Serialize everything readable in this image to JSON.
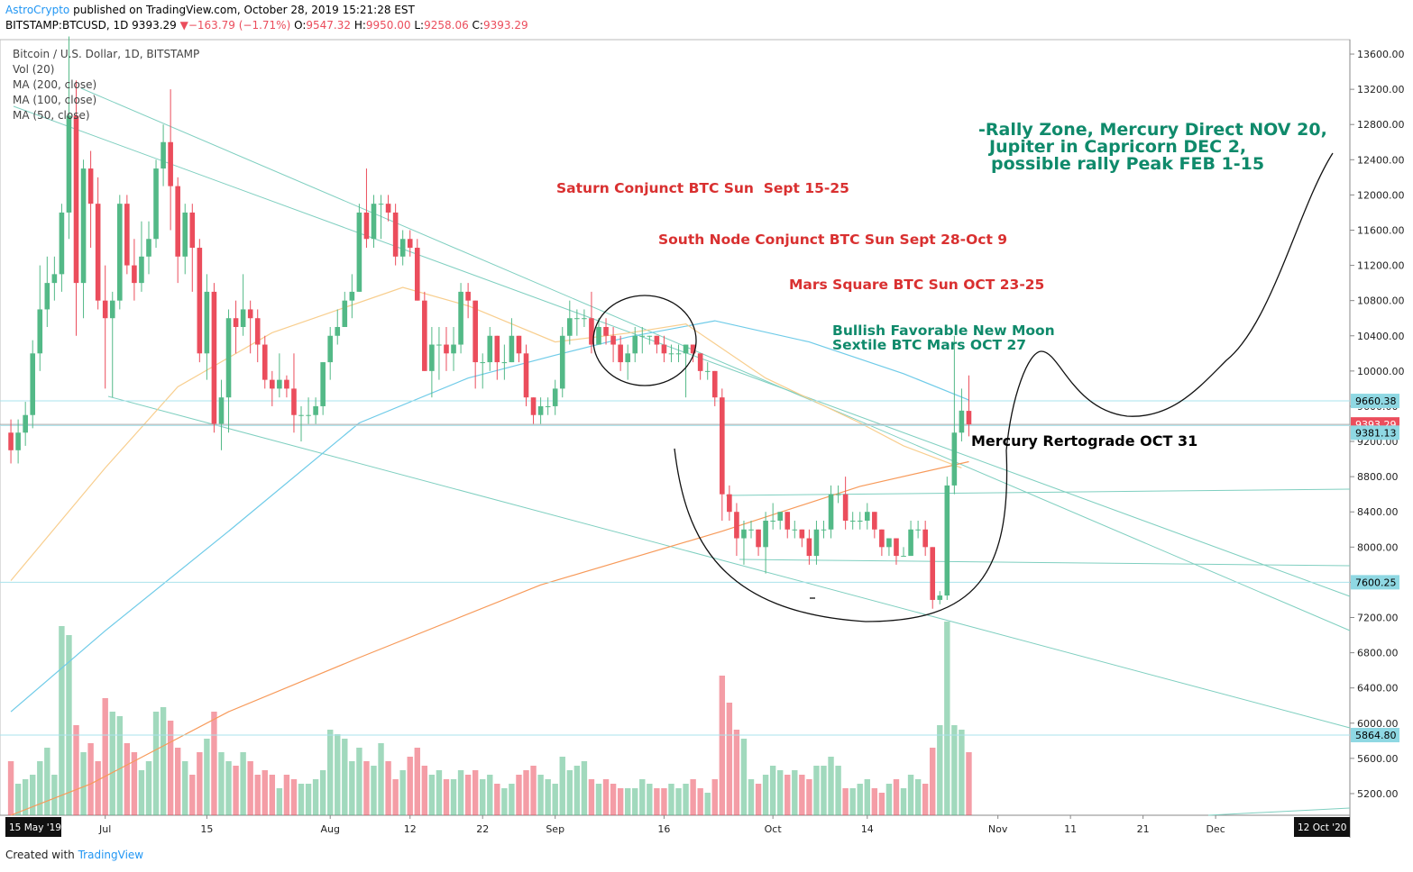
{
  "header": {
    "author": "AstroCrypto",
    "published": "published on TradingView.com, October 28, 2019 15:21:28 EST",
    "symbol": "BITSTAMP:BTCUSD, 1D",
    "last": "9393.29",
    "change": "−163.79 (−1.71%)",
    "quote": [
      {
        "label": "O:",
        "value": "9547.32"
      },
      {
        "label": "H:",
        "value": "9950.00"
      },
      {
        "label": "L:",
        "value": "9258.06"
      },
      {
        "label": "C:",
        "value": "9393.29"
      }
    ]
  },
  "footer": {
    "created": "Created with",
    "brand": "TradingView"
  },
  "chart_data": {
    "type": "candlestick",
    "legend": [
      "Bitcoin / U.S. Dollar, 1D, BITSTAMP",
      "Vol (20)",
      "MA (200, close)",
      "MA (100, close)",
      "MA (50, close)"
    ],
    "up_color": "#53b987",
    "down_color": "#eb4d5c",
    "xlim": [
      -1.5,
      184.5
    ],
    "xticks": [
      {
        "value": 13,
        "label": "Jul"
      },
      {
        "value": 27,
        "label": "15"
      },
      {
        "value": 44,
        "label": "Aug"
      },
      {
        "value": 55,
        "label": "12"
      },
      {
        "value": 65,
        "label": "22"
      },
      {
        "value": 75,
        "label": "Sep"
      },
      {
        "value": 90,
        "label": "16"
      },
      {
        "value": 105,
        "label": "Oct"
      },
      {
        "value": 118,
        "label": "14"
      },
      {
        "value": 136,
        "label": "Nov"
      },
      {
        "value": 146,
        "label": "11"
      },
      {
        "value": 156,
        "label": "21"
      },
      {
        "value": 166,
        "label": "Dec"
      }
    ],
    "x_range_labels": [
      "15 May '19",
      "12 Oct '20"
    ],
    "ylim": [
      4954,
      13764
    ],
    "yticks": [
      {
        "value": 5200,
        "label": "5200.00"
      },
      {
        "value": 5600,
        "label": "5600.00"
      },
      {
        "value": 6000,
        "label": "6000.00"
      },
      {
        "value": 6400,
        "label": "6400.00"
      },
      {
        "value": 6800,
        "label": "6800.00"
      },
      {
        "value": 7200,
        "label": "7200.00"
      },
      {
        "value": 7600,
        "label": "7600.00"
      },
      {
        "value": 8000,
        "label": "8000.00"
      },
      {
        "value": 8400,
        "label": "8400.00"
      },
      {
        "value": 8800,
        "label": "8800.00"
      },
      {
        "value": 9200,
        "label": "9200.00"
      },
      {
        "value": 9600,
        "label": "9600.00"
      },
      {
        "value": 10000,
        "label": "10000.00"
      },
      {
        "value": 10400,
        "label": "10400.00"
      },
      {
        "value": 10800,
        "label": "10800.00"
      },
      {
        "value": 11200,
        "label": "11200.00"
      },
      {
        "value": 11600,
        "label": "11600.00"
      },
      {
        "value": 12000,
        "label": "12000.00"
      },
      {
        "value": 12400,
        "label": "12400.00"
      },
      {
        "value": 12800,
        "label": "12800.00"
      },
      {
        "value": 13200,
        "label": "13200.00"
      },
      {
        "value": 13600,
        "label": "13600.00"
      }
    ],
    "ohlc": [
      [
        9300,
        9450,
        8950,
        9100
      ],
      [
        9100,
        9450,
        8950,
        9300
      ],
      [
        9300,
        9650,
        9150,
        9500
      ],
      [
        9500,
        10350,
        9350,
        10200
      ],
      [
        10200,
        11200,
        10000,
        10700
      ],
      [
        10700,
        11300,
        10500,
        11000
      ],
      [
        11000,
        11300,
        10800,
        11100
      ],
      [
        11100,
        11900,
        10900,
        11800
      ],
      [
        11800,
        13800,
        11500,
        12900
      ],
      [
        12900,
        13300,
        10400,
        11000
      ],
      [
        11000,
        12400,
        10600,
        12300
      ],
      [
        12300,
        12500,
        11400,
        11900
      ],
      [
        11900,
        12200,
        10700,
        10800
      ],
      [
        10800,
        11200,
        9800,
        10600
      ],
      [
        10600,
        10900,
        9700,
        10800
      ],
      [
        10800,
        12000,
        10700,
        11900
      ],
      [
        11900,
        12000,
        11100,
        11200
      ],
      [
        11200,
        11500,
        10800,
        11000
      ],
      [
        11000,
        11700,
        10900,
        11300
      ],
      [
        11300,
        11700,
        11100,
        11500
      ],
      [
        11500,
        12400,
        11400,
        12300
      ],
      [
        12300,
        12800,
        12100,
        12600
      ],
      [
        12600,
        13200,
        11600,
        12100
      ],
      [
        12100,
        12200,
        11000,
        11300
      ],
      [
        11300,
        11900,
        11100,
        11800
      ],
      [
        11800,
        11900,
        10900,
        11400
      ],
      [
        11400,
        11500,
        10100,
        10200
      ],
      [
        10200,
        11100,
        9900,
        10900
      ],
      [
        10900,
        11000,
        9300,
        9400
      ],
      [
        9400,
        9900,
        9100,
        9700
      ],
      [
        9700,
        10700,
        9300,
        10600
      ],
      [
        10600,
        10800,
        10200,
        10500
      ],
      [
        10500,
        11100,
        10400,
        10700
      ],
      [
        10700,
        10800,
        10200,
        10600
      ],
      [
        10600,
        10700,
        10100,
        10300
      ],
      [
        10300,
        10400,
        9800,
        9900
      ],
      [
        9900,
        10000,
        9600,
        9800
      ],
      [
        9800,
        10200,
        9700,
        9900
      ],
      [
        9900,
        9950,
        9700,
        9800
      ],
      [
        9800,
        10200,
        9300,
        9500
      ],
      [
        9500,
        9600,
        9200,
        9500
      ],
      [
        9500,
        9700,
        9400,
        9500
      ],
      [
        9500,
        9700,
        9400,
        9600
      ],
      [
        9600,
        10100,
        9500,
        10100
      ],
      [
        10100,
        10500,
        9900,
        10400
      ],
      [
        10400,
        10700,
        10300,
        10500
      ],
      [
        10500,
        10900,
        10500,
        10800
      ],
      [
        10800,
        11100,
        10600,
        10900
      ],
      [
        10900,
        11900,
        10900,
        11800
      ],
      [
        11800,
        12300,
        11400,
        11500
      ],
      [
        11500,
        12000,
        11400,
        11900
      ],
      [
        11900,
        12000,
        11500,
        11900
      ],
      [
        11900,
        12000,
        11700,
        11800
      ],
      [
        11800,
        11900,
        11200,
        11300
      ],
      [
        11300,
        11600,
        11200,
        11500
      ],
      [
        11500,
        11600,
        11300,
        11400
      ],
      [
        11400,
        11500,
        10800,
        10800
      ],
      [
        10800,
        10900,
        10000,
        10000
      ],
      [
        10000,
        10500,
        9700,
        10300
      ],
      [
        10300,
        10500,
        9900,
        10300
      ],
      [
        10300,
        10500,
        10000,
        10200
      ],
      [
        10200,
        10500,
        10000,
        10300
      ],
      [
        10300,
        11000,
        10200,
        10900
      ],
      [
        10900,
        11000,
        10600,
        10800
      ],
      [
        10800,
        10800,
        9800,
        10100
      ],
      [
        10100,
        10200,
        9800,
        10100
      ],
      [
        10100,
        10500,
        10000,
        10400
      ],
      [
        10400,
        10400,
        9900,
        10100
      ],
      [
        10100,
        10300,
        9900,
        10100
      ],
      [
        10100,
        10600,
        10100,
        10400
      ],
      [
        10400,
        10400,
        10100,
        10200
      ],
      [
        10200,
        10300,
        9600,
        9700
      ],
      [
        9700,
        9700,
        9400,
        9500
      ],
      [
        9500,
        9700,
        9400,
        9600
      ],
      [
        9600,
        9700,
        9500,
        9600
      ],
      [
        9600,
        9900,
        9500,
        9800
      ],
      [
        9800,
        10500,
        9700,
        10400
      ],
      [
        10400,
        10800,
        10300,
        10600
      ],
      [
        10600,
        10700,
        10400,
        10600
      ],
      [
        10600,
        10700,
        10500,
        10600
      ],
      [
        10600,
        10900,
        10200,
        10300
      ],
      [
        10300,
        10600,
        10300,
        10500
      ],
      [
        10500,
        10600,
        10300,
        10400
      ],
      [
        10400,
        10500,
        10100,
        10300
      ],
      [
        10300,
        10400,
        10000,
        10100
      ],
      [
        10100,
        10300,
        9900,
        10200
      ],
      [
        10200,
        10500,
        10100,
        10400
      ],
      [
        10400,
        10500,
        10200,
        10400
      ],
      [
        10400,
        10400,
        10300,
        10400
      ],
      [
        10400,
        10400,
        10200,
        10300
      ],
      [
        10300,
        10400,
        10100,
        10200
      ],
      [
        10200,
        10300,
        10100,
        10200
      ],
      [
        10200,
        10300,
        10100,
        10200
      ],
      [
        10200,
        10300,
        9700,
        10300
      ],
      [
        10300,
        10300,
        10100,
        10200
      ],
      [
        10200,
        10200,
        9900,
        10000
      ],
      [
        10000,
        10100,
        9900,
        10000
      ],
      [
        10000,
        10000,
        9600,
        9700
      ],
      [
        9700,
        9800,
        8300,
        8600
      ],
      [
        8600,
        8700,
        8300,
        8400
      ],
      [
        8400,
        8500,
        7900,
        8100
      ],
      [
        8100,
        8300,
        7800,
        8200
      ],
      [
        8200,
        8300,
        8100,
        8200
      ],
      [
        8200,
        8200,
        7900,
        8000
      ],
      [
        8000,
        8400,
        7700,
        8300
      ],
      [
        8300,
        8500,
        8200,
        8300
      ],
      [
        8300,
        8400,
        8200,
        8400
      ],
      [
        8400,
        8400,
        8100,
        8200
      ],
      [
        8200,
        8300,
        8100,
        8200
      ],
      [
        8200,
        8200,
        8000,
        8100
      ],
      [
        8100,
        8200,
        7800,
        7900
      ],
      [
        7900,
        8300,
        7800,
        8200
      ],
      [
        8200,
        8300,
        8100,
        8200
      ],
      [
        8200,
        8700,
        8100,
        8600
      ],
      [
        8600,
        8700,
        8500,
        8600
      ],
      [
        8600,
        8800,
        8200,
        8300
      ],
      [
        8300,
        8400,
        8200,
        8300
      ],
      [
        8300,
        8400,
        8200,
        8300
      ],
      [
        8300,
        8500,
        8200,
        8400
      ],
      [
        8400,
        8400,
        8100,
        8200
      ],
      [
        8200,
        8200,
        7900,
        8000
      ],
      [
        8000,
        8100,
        7900,
        8100
      ],
      [
        8100,
        8100,
        7800,
        7900
      ],
      [
        7900,
        8000,
        7900,
        7900
      ],
      [
        7900,
        8300,
        7900,
        8200
      ],
      [
        8200,
        8300,
        8100,
        8200
      ],
      [
        8200,
        8300,
        7900,
        8000
      ],
      [
        8000,
        8000,
        7300,
        7400
      ],
      [
        7400,
        7500,
        7350,
        7450
      ],
      [
        7450,
        8800,
        7400,
        8700
      ],
      [
        8700,
        10400,
        8600,
        9300
      ],
      [
        9300,
        9800,
        9200,
        9550
      ],
      [
        9547.32,
        9950,
        9258.06,
        9393.29
      ]
    ],
    "volume": [
      60,
      35,
      40,
      45,
      60,
      75,
      45,
      210,
      200,
      100,
      70,
      80,
      60,
      130,
      115,
      110,
      80,
      70,
      50,
      60,
      115,
      120,
      105,
      75,
      60,
      45,
      70,
      85,
      115,
      70,
      60,
      55,
      70,
      60,
      45,
      50,
      45,
      30,
      45,
      40,
      35,
      35,
      40,
      50,
      95,
      90,
      85,
      60,
      75,
      60,
      55,
      80,
      60,
      40,
      50,
      65,
      75,
      55,
      45,
      50,
      40,
      40,
      50,
      45,
      50,
      40,
      45,
      35,
      30,
      35,
      45,
      50,
      55,
      45,
      40,
      35,
      65,
      50,
      55,
      60,
      40,
      35,
      40,
      35,
      30,
      30,
      30,
      40,
      35,
      30,
      30,
      35,
      30,
      35,
      40,
      30,
      25,
      40,
      155,
      125,
      95,
      85,
      40,
      35,
      45,
      55,
      50,
      45,
      50,
      45,
      40,
      55,
      55,
      65,
      55,
      30,
      30,
      35,
      40,
      30,
      25,
      35,
      40,
      30,
      45,
      40,
      35,
      75,
      100,
      215,
      100,
      95,
      70
    ],
    "ma": [
      {
        "name": "MA (200, close)",
        "color": "#f79a5a",
        "x": [
          0,
          11,
          30,
          48,
          73,
          98,
          117,
          132
        ],
        "values": [
          4954,
          5310,
          6130,
          6745,
          7570,
          8180,
          8690,
          8970
        ]
      },
      {
        "name": "MA (100, close)",
        "color": "#6fcbe8",
        "x": [
          0,
          13,
          30,
          48,
          63,
          75,
          85,
          97,
          110,
          123,
          132
        ],
        "values": [
          6130,
          7050,
          8180,
          9410,
          9920,
          10180,
          10385,
          10570,
          10330,
          9970,
          9670
        ]
      },
      {
        "name": "MA (50, close)",
        "color": "#f8ce8e",
        "x": [
          0,
          13,
          23,
          36,
          54,
          63,
          75,
          85,
          93,
          104,
          117,
          123,
          131
        ],
        "values": [
          7620,
          8900,
          9820,
          10435,
          10950,
          10740,
          10330,
          10430,
          10535,
          9920,
          9410,
          9150,
          8900
        ]
      }
    ],
    "price_lines": [
      {
        "value": 9660.38,
        "label": "9660.38",
        "color": "#8fd8e3",
        "text_color": "#000"
      },
      {
        "value": 9393.29,
        "label": "9393.29",
        "color": "#eb4d5c",
        "text_color": "#fff"
      },
      {
        "value": 9381.13,
        "label": "9381.13",
        "color": "#8fd8e3",
        "text_color": "#000"
      },
      {
        "value": 7600.25,
        "label": "7600.25",
        "color": "#8fd8e3",
        "text_color": "#000"
      },
      {
        "value": 5864.8,
        "label": "5864.80",
        "color": "#8fd8e3",
        "text_color": "#000"
      }
    ],
    "annotations": [
      {
        "text": "-Rally Zone, Mercury Direct NOV 20,",
        "color": "#0f8a6b"
      },
      {
        "text": "Jupiter in Capricorn DEC 2,",
        "color": "#0f8a6b"
      },
      {
        "text": "possible rally Peak FEB 1-15",
        "color": "#0f8a6b"
      },
      {
        "text": "Saturn Conjunct BTC Sun  Sept 15-25",
        "color": "#d93030"
      },
      {
        "text": "South Node Conjunct BTC Sun Sept 28-Oct 9",
        "color": "#d93030"
      },
      {
        "text": "Mars Square BTC Sun OCT 23-25",
        "color": "#d93030"
      },
      {
        "text": "Bullish Favorable New Moon",
        "color": "#0f8a6b"
      },
      {
        "text": "Sextile BTC Mars OCT 27",
        "color": "#0f8a6b"
      },
      {
        "text": "Mercury Rertograde OCT 31",
        "color": "#000000"
      }
    ]
  }
}
